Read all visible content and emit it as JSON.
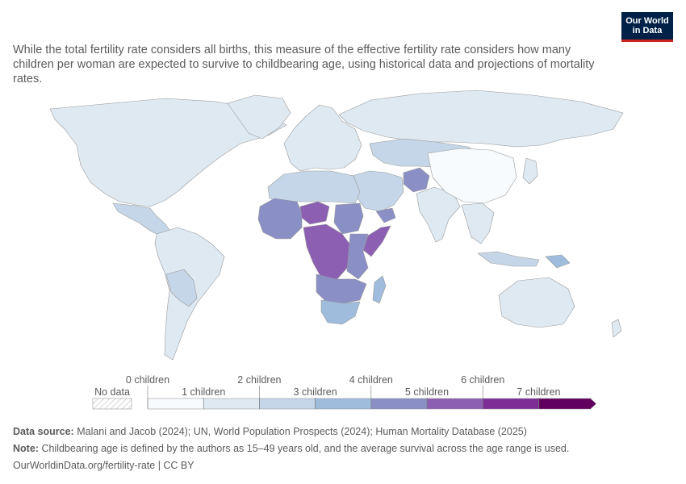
{
  "logo": {
    "line1": "Our World",
    "line2": "in Data"
  },
  "subtitle": "While the total fertility rate considers all births, this measure of the effective fertility rate considers how many children per woman are expected to survive to childbearing age, using historical data and projections of mortality rates.",
  "legend": {
    "no_data_label": "No data",
    "labels": [
      "0 children",
      "1 children",
      "2 children",
      "3 children",
      "4 children",
      "5 children",
      "6 children",
      "7 children"
    ],
    "colors": [
      "#f7fbfd",
      "#dfe9f2",
      "#c4d6e7",
      "#9fbcdc",
      "#8a8fc6",
      "#8c5fb3",
      "#7c2d96",
      "#62005f"
    ]
  },
  "footer": {
    "source_label": "Data source:",
    "source_text": "Malani and Jacob (2024); UN, World Population Prospects (2024); Human Mortality Database (2025)",
    "note_label": "Note:",
    "note_text": "Childbearing age is defined by the authors as 15–49 years old, and the average survival across the age range is used.",
    "url": "OurWorldinData.org/fertility-rate | CC BY"
  },
  "regions": [
    {
      "name": "north-america",
      "bin": 1
    },
    {
      "name": "greenland",
      "bin": 1
    },
    {
      "name": "mexico-central-america",
      "bin": 2
    },
    {
      "name": "south-america",
      "bin": 1
    },
    {
      "name": "bolivia-paraguay",
      "bin": 2
    },
    {
      "name": "europe",
      "bin": 1
    },
    {
      "name": "russia",
      "bin": 1
    },
    {
      "name": "central-asia",
      "bin": 2
    },
    {
      "name": "afghanistan",
      "bin": 4
    },
    {
      "name": "middle-east",
      "bin": 2
    },
    {
      "name": "yemen",
      "bin": 4
    },
    {
      "name": "north-africa",
      "bin": 2
    },
    {
      "name": "west-sahel",
      "bin": 4
    },
    {
      "name": "niger",
      "bin": 5
    },
    {
      "name": "sudan",
      "bin": 4
    },
    {
      "name": "central-africa",
      "bin": 5
    },
    {
      "name": "somalia",
      "bin": 5
    },
    {
      "name": "east-africa",
      "bin": 4
    },
    {
      "name": "southern-central-africa",
      "bin": 4
    },
    {
      "name": "southern-africa",
      "bin": 3
    },
    {
      "name": "madagascar",
      "bin": 3
    },
    {
      "name": "south-asia",
      "bin": 1
    },
    {
      "name": "china",
      "bin": 0
    },
    {
      "name": "southeast-asia",
      "bin": 1
    },
    {
      "name": "indonesia",
      "bin": 2
    },
    {
      "name": "papua-new-guinea",
      "bin": 3
    },
    {
      "name": "japan",
      "bin": 1
    },
    {
      "name": "australia",
      "bin": 1
    },
    {
      "name": "new-zealand",
      "bin": 1
    }
  ]
}
